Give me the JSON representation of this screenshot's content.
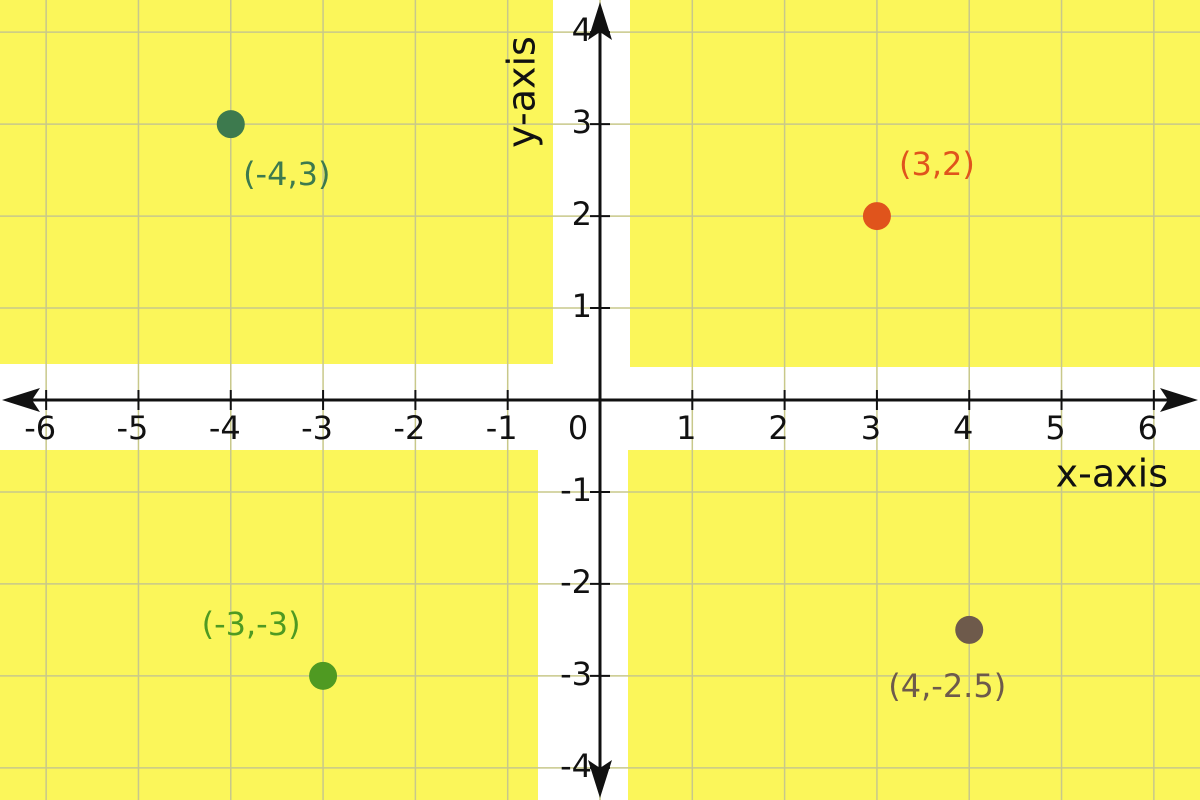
{
  "chart_data": {
    "type": "scatter",
    "x_label": "x-axis",
    "y_label": "y-axis",
    "x": [
      -4,
      3,
      -3,
      4
    ],
    "y": [
      3,
      2,
      -3,
      -2.5
    ],
    "point_labels": [
      "(-4,3)",
      "(3,2)",
      "(-3,-3)",
      "(4,-2.5)"
    ],
    "colors": [
      "#3d7a4e",
      "#e0541c",
      "#4f9a22",
      "#6e5a4b"
    ],
    "xlim": [
      -6.5,
      6.5
    ],
    "ylim": [
      -4.35,
      4.35
    ],
    "xticks": [
      -6,
      -5,
      -4,
      -3,
      -2,
      -1,
      0,
      1,
      2,
      3,
      4,
      5,
      6
    ],
    "yticks": [
      -4,
      -3,
      -2,
      -1,
      1,
      2,
      3,
      4
    ],
    "grid": true
  }
}
